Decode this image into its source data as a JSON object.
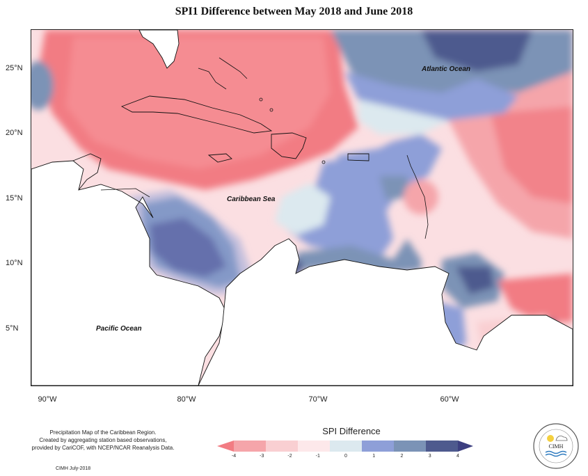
{
  "title": "SPI1 Difference between May 2018 and June 2018",
  "map": {
    "labels": {
      "atlantic": "Atlantic Ocean",
      "caribbean": "Caribbean Sea",
      "pacific": "Pacific Ocean"
    },
    "lat_ticks": [
      "25°N",
      "20°N",
      "15°N",
      "10°N",
      "5°N"
    ],
    "lon_ticks": [
      "90°W",
      "80°W",
      "70°W",
      "60°W"
    ]
  },
  "legend": {
    "title": "SPI Difference",
    "ticks": [
      "-4",
      "-3",
      "-2",
      "-1",
      "0",
      "1",
      "2",
      "3",
      "4"
    ],
    "colors": [
      "#f27c83",
      "#f5a5aa",
      "#f9cfd2",
      "#fde8ea",
      "#dce9ef",
      "#8e9fd8",
      "#7b93b6",
      "#4e5a8e",
      "#3c3f80"
    ]
  },
  "credit": {
    "line1": "Precipitation Map of the Caribbean Region.",
    "line2": "Created by aggregating station based observations,",
    "line3": "provided by CariCOF, with NCEP/NCAR Reanalysis Data.",
    "date": "CIMH July-2018"
  },
  "logo": {
    "text": "CIMH"
  }
}
